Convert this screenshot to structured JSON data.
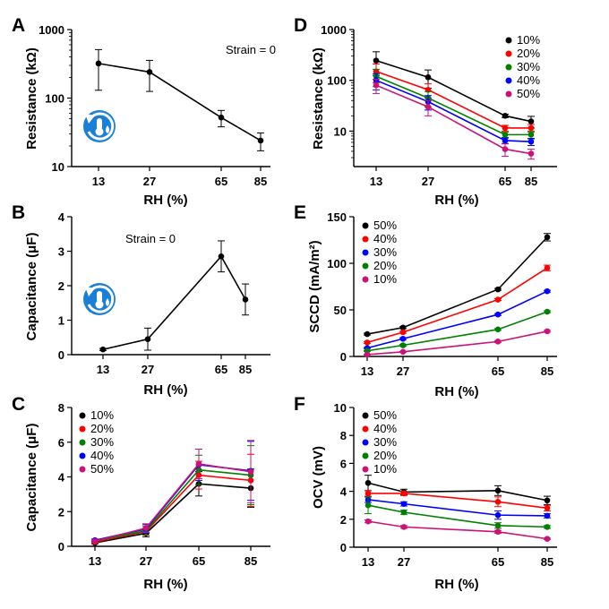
{
  "chart_data": [
    {
      "id": "A",
      "letter": "A",
      "type": "line",
      "scale": "log",
      "x": [
        13,
        27,
        65,
        85
      ],
      "xlabel": "RH (%)",
      "ylabel": "Resistance (kΩ)",
      "ylim": [
        10,
        1000
      ],
      "yticks": [
        10,
        100,
        1000
      ],
      "annotation": "Strain = 0",
      "icon": "thermometer-humidity-icon",
      "series": [
        {
          "values": [
            320,
            240,
            52,
            24
          ],
          "errors": [
            190,
            115,
            14,
            7
          ],
          "color": "#000000"
        }
      ]
    },
    {
      "id": "B",
      "letter": "B",
      "type": "line",
      "scale": "linear",
      "x": [
        13,
        27,
        65,
        85
      ],
      "xlabel": "RH (%)",
      "ylabel": "Capacitance (μF)",
      "ylim": [
        0,
        4
      ],
      "yticks": [
        0,
        1,
        2,
        3,
        4
      ],
      "annotation": "Strain = 0",
      "icon": "thermometer-humidity-icon",
      "series": [
        {
          "values": [
            0.15,
            0.45,
            2.85,
            1.6
          ],
          "errors": [
            0.03,
            0.32,
            0.45,
            0.45
          ],
          "color": "#000000"
        }
      ]
    },
    {
      "id": "C",
      "letter": "C",
      "type": "line",
      "scale": "linear",
      "x": [
        13,
        27,
        65,
        85
      ],
      "xlabel": "RH (%)",
      "ylabel": "Capacitance (μF)",
      "ylim": [
        0,
        8
      ],
      "yticks": [
        0,
        2,
        4,
        6,
        8
      ],
      "legend_position": "top-left",
      "series": [
        {
          "name": "10%",
          "color": "#000000",
          "values": [
            0.2,
            0.75,
            3.6,
            3.35
          ],
          "errors": [
            0.05,
            0.2,
            0.7,
            1.1
          ]
        },
        {
          "name": "20%",
          "color": "#ff0000",
          "values": [
            0.25,
            0.85,
            4.1,
            3.8
          ],
          "errors": [
            0.05,
            0.2,
            0.8,
            1.5
          ]
        },
        {
          "name": "30%",
          "color": "#008000",
          "values": [
            0.3,
            0.9,
            4.4,
            4.1
          ],
          "errors": [
            0.06,
            0.25,
            0.85,
            1.7
          ]
        },
        {
          "name": "40%",
          "color": "#0000ff",
          "values": [
            0.35,
            1.0,
            4.7,
            4.35
          ],
          "errors": [
            0.07,
            0.25,
            0.9,
            1.7
          ]
        },
        {
          "name": "50%",
          "color": "#cc1177",
          "values": [
            0.3,
            1.05,
            4.75,
            4.3
          ],
          "errors": [
            0.06,
            0.25,
            0.85,
            1.8
          ]
        }
      ]
    },
    {
      "id": "D",
      "letter": "D",
      "type": "line",
      "scale": "log",
      "x": [
        13,
        27,
        65,
        85
      ],
      "xlabel": "RH (%)",
      "ylabel": "Resistance (kΩ)",
      "ylim": [
        2,
        1000
      ],
      "yticks": [
        10,
        100,
        1000
      ],
      "legend_position": "top-right",
      "series": [
        {
          "name": "10%",
          "color": "#000000",
          "values": [
            245,
            115,
            20,
            15.5
          ],
          "errors": [
            120,
            45,
            1.5,
            4
          ]
        },
        {
          "name": "20%",
          "color": "#ff0000",
          "values": [
            150,
            65,
            11.5,
            11.5
          ],
          "errors": [
            60,
            20,
            1.5,
            2
          ]
        },
        {
          "name": "30%",
          "color": "#008000",
          "values": [
            120,
            45,
            8.5,
            8.5
          ],
          "errors": [
            45,
            15,
            1,
            1.5
          ]
        },
        {
          "name": "40%",
          "color": "#0000ff",
          "values": [
            100,
            38,
            6.5,
            6.2
          ],
          "errors": [
            35,
            12,
            0.8,
            1
          ]
        },
        {
          "name": "50%",
          "color": "#cc1177",
          "values": [
            80,
            30,
            4.4,
            3.6
          ],
          "errors": [
            25,
            10,
            1.2,
            0.8
          ]
        }
      ]
    },
    {
      "id": "E",
      "letter": "E",
      "type": "line",
      "scale": "linear",
      "x": [
        13,
        27,
        65,
        85
      ],
      "xlabel": "RH (%)",
      "ylabel": "SCCD (mA/m²)",
      "ylim": [
        0,
        150
      ],
      "yticks": [
        0,
        50,
        100,
        150
      ],
      "legend_position": "top-left",
      "series": [
        {
          "name": "50%",
          "color": "#000000",
          "values": [
            24,
            31,
            72,
            128
          ],
          "errors": [
            1,
            1,
            1,
            4
          ]
        },
        {
          "name": "40%",
          "color": "#ff0000",
          "values": [
            15,
            26,
            61,
            95
          ],
          "errors": [
            1,
            1,
            1,
            3
          ]
        },
        {
          "name": "30%",
          "color": "#0000ff",
          "values": [
            9,
            19,
            45,
            70
          ],
          "errors": [
            0.5,
            1,
            1,
            1
          ]
        },
        {
          "name": "20%",
          "color": "#008000",
          "values": [
            6,
            12,
            29,
            48
          ],
          "errors": [
            0.5,
            1,
            1,
            1
          ]
        },
        {
          "name": "10%",
          "color": "#cc1177",
          "values": [
            2,
            5,
            16,
            27
          ],
          "errors": [
            0.3,
            0.5,
            1,
            1
          ]
        }
      ]
    },
    {
      "id": "F",
      "letter": "F",
      "type": "line",
      "scale": "linear",
      "x": [
        13,
        27,
        65,
        85
      ],
      "xlabel": "RH (%)",
      "ylabel": "OCV (mV)",
      "ylim": [
        0,
        10
      ],
      "yticks": [
        0,
        2,
        4,
        6,
        8,
        10
      ],
      "legend_position": "top-left",
      "series": [
        {
          "name": "50%",
          "color": "#000000",
          "values": [
            4.6,
            3.95,
            4.05,
            3.35
          ],
          "errors": [
            0.55,
            0.2,
            0.35,
            0.3
          ]
        },
        {
          "name": "40%",
          "color": "#ff0000",
          "values": [
            3.85,
            3.85,
            3.25,
            2.8
          ],
          "errors": [
            0.2,
            0.15,
            0.35,
            0.2
          ]
        },
        {
          "name": "30%",
          "color": "#0000ff",
          "values": [
            3.4,
            3.1,
            2.3,
            2.25
          ],
          "errors": [
            0.2,
            0.15,
            0.3,
            0.15
          ]
        },
        {
          "name": "20%",
          "color": "#008000",
          "values": [
            3.0,
            2.5,
            1.55,
            1.45
          ],
          "errors": [
            0.6,
            0.15,
            0.2,
            0.1
          ]
        },
        {
          "name": "10%",
          "color": "#cc1177",
          "values": [
            1.85,
            1.45,
            1.1,
            0.6
          ],
          "errors": [
            0.1,
            0.1,
            0.1,
            0.05
          ]
        }
      ]
    }
  ]
}
